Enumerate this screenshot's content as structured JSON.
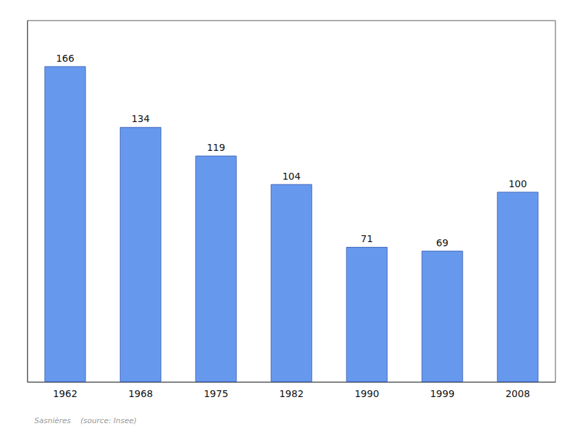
{
  "chart_data": {
    "type": "bar",
    "categories": [
      "1962",
      "1968",
      "1975",
      "1982",
      "1990",
      "1999",
      "2008"
    ],
    "values": [
      166,
      134,
      119,
      104,
      71,
      69,
      100
    ],
    "color": "#6699EE",
    "ylim": [
      0,
      190
    ],
    "grid": false,
    "data_labels": true,
    "tick_labels": "x",
    "annotations": [
      "Sasnières    (source: Insee)"
    ]
  }
}
